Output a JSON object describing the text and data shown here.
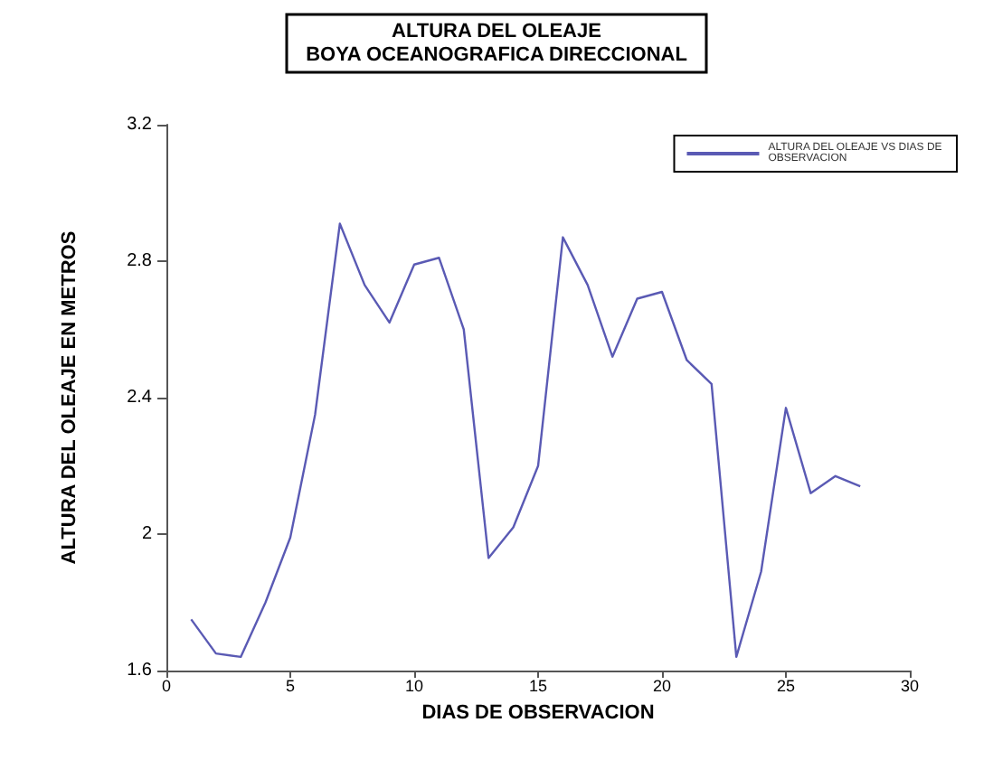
{
  "chart_data": {
    "type": "line",
    "title": "ALTURA DEL OLEAJE\nBOYA OCEANOGRAFICA DIRECCIONAL",
    "xlabel": "DIAS DE OBSERVACION",
    "ylabel": "ALTURA DEL OLEAJE EN METROS",
    "x": [
      1,
      2,
      3,
      4,
      5,
      6,
      7,
      8,
      9,
      10,
      11,
      12,
      13,
      14,
      15,
      16,
      17,
      18,
      19,
      20,
      21,
      22,
      23,
      24,
      25,
      26,
      27,
      28
    ],
    "series": [
      {
        "name": "ALTURA DEL OLEAJE VS DIAS DE OBSERVACION",
        "color": "#5a5ab4",
        "values": [
          1.75,
          1.65,
          1.64,
          1.8,
          1.99,
          2.35,
          2.91,
          2.73,
          2.62,
          2.79,
          2.81,
          2.6,
          1.93,
          2.02,
          2.2,
          2.87,
          2.73,
          2.52,
          2.69,
          2.71,
          2.51,
          2.44,
          1.64,
          1.89,
          2.37,
          2.12,
          2.17,
          2.14
        ]
      }
    ],
    "xlim": [
      0,
      30
    ],
    "xticks": [
      0,
      5,
      10,
      15,
      20,
      25,
      30
    ],
    "ylim": [
      1.6,
      3.2
    ],
    "yticks": [
      1.6,
      2,
      2.4,
      2.8,
      3.2
    ],
    "grid": false,
    "legend": "top right",
    "marker": "none",
    "line_style": "solid"
  }
}
